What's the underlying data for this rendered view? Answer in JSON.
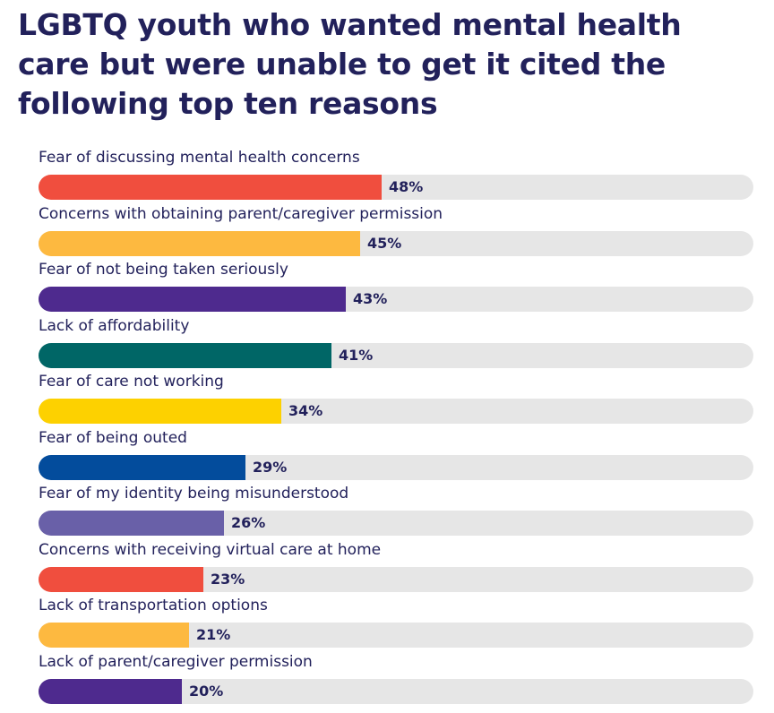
{
  "title": "LGBTQ youth who wanted mental health care but were unable to get it cited the following top ten reasons",
  "chart_data": {
    "type": "bar",
    "orientation": "horizontal",
    "title": "LGBTQ youth who wanted mental health care but were unable to get it cited the following top ten reasons",
    "xlabel": "",
    "ylabel": "",
    "xlim": [
      0,
      100
    ],
    "grid": false,
    "unit": "%",
    "categories": [
      "Fear of discussing mental health concerns",
      "Concerns with obtaining parent/caregiver permission",
      "Fear of not being taken seriously",
      "Lack of affordability",
      "Fear of care not working",
      "Fear of being outed",
      "Fear of my identity being misunderstood",
      "Concerns with receiving virtual care at home",
      "Lack of transportation options",
      "Lack of parent/caregiver permission"
    ],
    "values": [
      48,
      45,
      43,
      41,
      34,
      29,
      26,
      23,
      21,
      20
    ],
    "value_labels": [
      "48%",
      "45%",
      "43%",
      "41%",
      "34%",
      "29%",
      "26%",
      "23%",
      "21%",
      "20%"
    ],
    "colors": [
      "#f04e3e",
      "#fdb940",
      "#4e2a8e",
      "#006666",
      "#fdd100",
      "#034c9c",
      "#6960a8",
      "#f04e3e",
      "#fdb940",
      "#4e2a8e"
    ],
    "track_color": "#e6e6e6"
  }
}
